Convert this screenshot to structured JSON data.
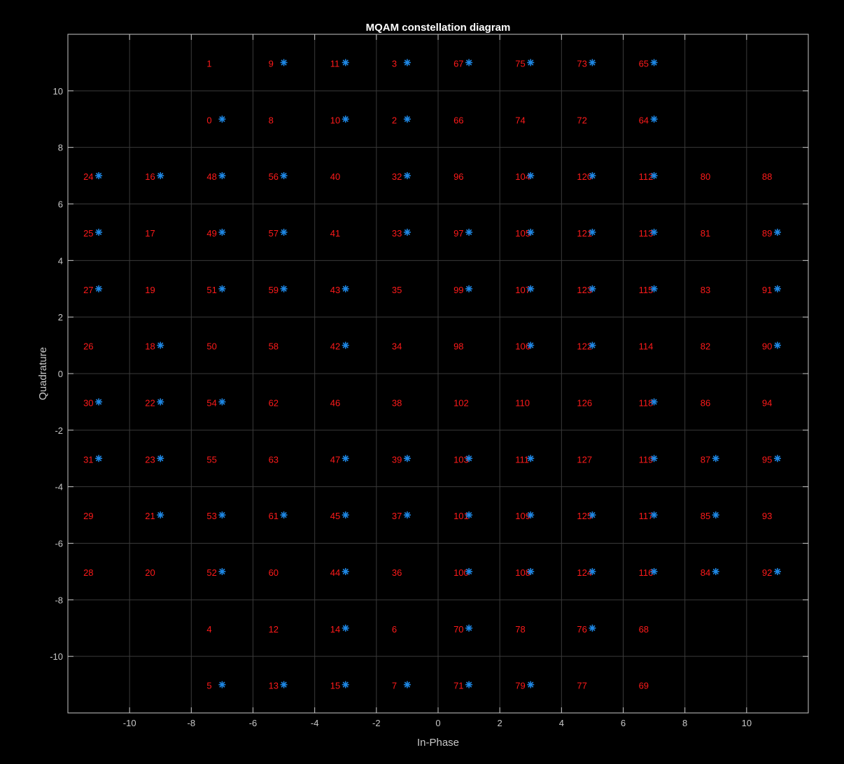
{
  "chart_data": {
    "type": "scatter",
    "title": "MQAM constellation diagram",
    "xlabel": "In-Phase",
    "ylabel": "Quadrature",
    "xlim": [
      -12,
      12
    ],
    "ylim": [
      -12,
      12
    ],
    "xticks": [
      -10,
      -8,
      -6,
      -4,
      -2,
      0,
      2,
      4,
      6,
      8,
      10
    ],
    "yticks": [
      -10,
      -8,
      -6,
      -4,
      -2,
      0,
      2,
      4,
      6,
      8,
      10
    ],
    "grid": true,
    "colors": {
      "background": "#000000",
      "axes": "#c8c8c8",
      "grid": "#3a3a3a",
      "labels": "#ff1a1a",
      "markers": "#1e88e5"
    },
    "label_rows": [
      {
        "y": 11,
        "items": [
          [
            -7,
            "1"
          ],
          [
            -5,
            "9"
          ],
          [
            -3,
            "11"
          ],
          [
            -1,
            "3"
          ],
          [
            1,
            "67"
          ],
          [
            3,
            "75"
          ],
          [
            5,
            "73"
          ],
          [
            7,
            "65"
          ]
        ]
      },
      {
        "y": 9,
        "items": [
          [
            -7,
            "0"
          ],
          [
            -5,
            "8"
          ],
          [
            -3,
            "10"
          ],
          [
            -1,
            "2"
          ],
          [
            1,
            "66"
          ],
          [
            3,
            "74"
          ],
          [
            5,
            "72"
          ],
          [
            7,
            "64"
          ]
        ]
      },
      {
        "y": 7,
        "items": [
          [
            -11,
            "24"
          ],
          [
            -9,
            "16"
          ],
          [
            -7,
            "48"
          ],
          [
            -5,
            "56"
          ],
          [
            -3,
            "40"
          ],
          [
            -1,
            "32"
          ],
          [
            1,
            "96"
          ],
          [
            3,
            "104"
          ],
          [
            5,
            "120"
          ],
          [
            7,
            "112"
          ],
          [
            9,
            "80"
          ],
          [
            11,
            "88"
          ]
        ]
      },
      {
        "y": 5,
        "items": [
          [
            -11,
            "25"
          ],
          [
            -9,
            "17"
          ],
          [
            -7,
            "49"
          ],
          [
            -5,
            "57"
          ],
          [
            -3,
            "41"
          ],
          [
            -1,
            "33"
          ],
          [
            1,
            "97"
          ],
          [
            3,
            "105"
          ],
          [
            5,
            "121"
          ],
          [
            7,
            "113"
          ],
          [
            9,
            "81"
          ],
          [
            11,
            "89"
          ]
        ]
      },
      {
        "y": 3,
        "items": [
          [
            -11,
            "27"
          ],
          [
            -9,
            "19"
          ],
          [
            -7,
            "51"
          ],
          [
            -5,
            "59"
          ],
          [
            -3,
            "43"
          ],
          [
            -1,
            "35"
          ],
          [
            1,
            "99"
          ],
          [
            3,
            "107"
          ],
          [
            5,
            "123"
          ],
          [
            7,
            "115"
          ],
          [
            9,
            "83"
          ],
          [
            11,
            "91"
          ]
        ]
      },
      {
        "y": 1,
        "items": [
          [
            -11,
            "26"
          ],
          [
            -9,
            "18"
          ],
          [
            -7,
            "50"
          ],
          [
            -5,
            "58"
          ],
          [
            -3,
            "42"
          ],
          [
            -1,
            "34"
          ],
          [
            1,
            "98"
          ],
          [
            3,
            "106"
          ],
          [
            5,
            "122"
          ],
          [
            7,
            "114"
          ],
          [
            9,
            "82"
          ],
          [
            11,
            "90"
          ]
        ]
      },
      {
        "y": -1,
        "items": [
          [
            -11,
            "30"
          ],
          [
            -9,
            "22"
          ],
          [
            -7,
            "54"
          ],
          [
            -5,
            "62"
          ],
          [
            -3,
            "46"
          ],
          [
            -1,
            "38"
          ],
          [
            1,
            "102"
          ],
          [
            3,
            "110"
          ],
          [
            5,
            "126"
          ],
          [
            7,
            "118"
          ],
          [
            9,
            "86"
          ],
          [
            11,
            "94"
          ]
        ]
      },
      {
        "y": -3,
        "items": [
          [
            -11,
            "31"
          ],
          [
            -9,
            "23"
          ],
          [
            -7,
            "55"
          ],
          [
            -5,
            "63"
          ],
          [
            -3,
            "47"
          ],
          [
            -1,
            "39"
          ],
          [
            1,
            "103"
          ],
          [
            3,
            "111"
          ],
          [
            5,
            "127"
          ],
          [
            7,
            "119"
          ],
          [
            9,
            "87"
          ],
          [
            11,
            "95"
          ]
        ]
      },
      {
        "y": -5,
        "items": [
          [
            -11,
            "29"
          ],
          [
            -9,
            "21"
          ],
          [
            -7,
            "53"
          ],
          [
            -5,
            "61"
          ],
          [
            -3,
            "45"
          ],
          [
            -1,
            "37"
          ],
          [
            1,
            "101"
          ],
          [
            3,
            "109"
          ],
          [
            5,
            "125"
          ],
          [
            7,
            "117"
          ],
          [
            9,
            "85"
          ],
          [
            11,
            "93"
          ]
        ]
      },
      {
        "y": -7,
        "items": [
          [
            -11,
            "28"
          ],
          [
            -9,
            "20"
          ],
          [
            -7,
            "52"
          ],
          [
            -5,
            "60"
          ],
          [
            -3,
            "44"
          ],
          [
            -1,
            "36"
          ],
          [
            1,
            "100"
          ],
          [
            3,
            "108"
          ],
          [
            5,
            "124"
          ],
          [
            7,
            "116"
          ],
          [
            9,
            "84"
          ],
          [
            11,
            "92"
          ]
        ]
      },
      {
        "y": -9,
        "items": [
          [
            -7,
            "4"
          ],
          [
            -5,
            "12"
          ],
          [
            -3,
            "14"
          ],
          [
            -1,
            "6"
          ],
          [
            1,
            "70"
          ],
          [
            3,
            "78"
          ],
          [
            5,
            "76"
          ],
          [
            7,
            "68"
          ]
        ]
      },
      {
        "y": -11,
        "items": [
          [
            -7,
            "5"
          ],
          [
            -5,
            "13"
          ],
          [
            -3,
            "15"
          ],
          [
            -1,
            "7"
          ],
          [
            1,
            "71"
          ],
          [
            3,
            "79"
          ],
          [
            5,
            "77"
          ],
          [
            7,
            "69"
          ]
        ]
      }
    ],
    "marker_rows": [
      {
        "y": 11,
        "x": [
          -5,
          -3,
          -1,
          1,
          3,
          5,
          7
        ]
      },
      {
        "y": 9,
        "x": [
          -7,
          -3,
          -1,
          7
        ]
      },
      {
        "y": 7,
        "x": [
          -11,
          -9,
          -7,
          -5,
          -1,
          3,
          5,
          7
        ]
      },
      {
        "y": 5,
        "x": [
          -11,
          -7,
          -5,
          -1,
          1,
          3,
          5,
          7,
          11
        ]
      },
      {
        "y": 3,
        "x": [
          -11,
          -7,
          -5,
          -3,
          1,
          3,
          5,
          7,
          11
        ]
      },
      {
        "y": 1,
        "x": [
          -9,
          -3,
          3,
          5,
          11
        ]
      },
      {
        "y": -1,
        "x": [
          -11,
          -9,
          -7,
          7
        ]
      },
      {
        "y": -3,
        "x": [
          -11,
          -9,
          -3,
          -1,
          1,
          3,
          7,
          9,
          11
        ]
      },
      {
        "y": -5,
        "x": [
          -9,
          -7,
          -5,
          -3,
          -1,
          1,
          3,
          5,
          7,
          9
        ]
      },
      {
        "y": -7,
        "x": [
          -7,
          -3,
          1,
          3,
          5,
          7,
          9,
          11
        ]
      },
      {
        "y": -9,
        "x": [
          -3,
          1,
          5
        ]
      },
      {
        "y": -11,
        "x": [
          -7,
          -5,
          -3,
          -1,
          1,
          3
        ]
      }
    ]
  }
}
